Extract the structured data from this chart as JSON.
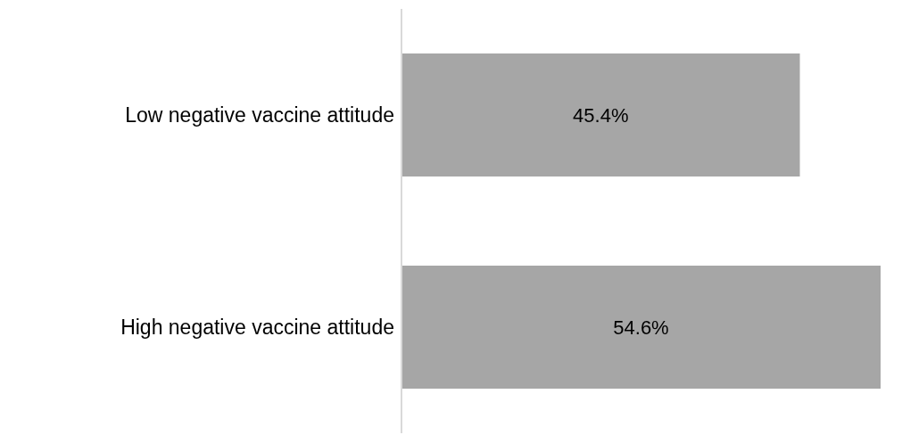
{
  "chart_data": {
    "type": "bar",
    "orientation": "horizontal",
    "categories": [
      "Low negative vaccine attitude",
      "High negative vaccine attitude"
    ],
    "values": [
      45.4,
      54.6
    ],
    "value_labels": [
      "45.4%",
      "54.6%"
    ],
    "color": "#a6a6a6"
  }
}
